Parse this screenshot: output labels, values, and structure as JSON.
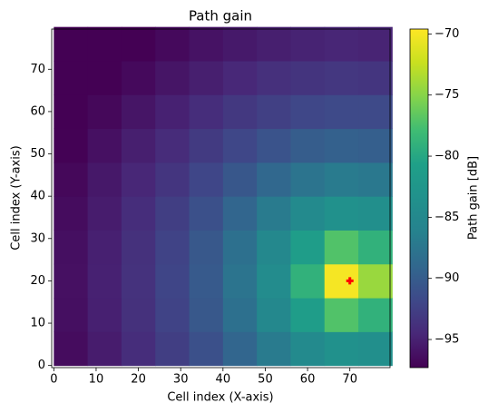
{
  "chart_data": {
    "type": "heatmap",
    "title": "Path gain",
    "xlabel": "Cell index (X-axis)",
    "ylabel": "Cell index (Y-axis)",
    "colorbar_label": "Path gain [dB]",
    "colormap": "viridis",
    "x": [
      4,
      12,
      20,
      28,
      36,
      44,
      52,
      60,
      68,
      76
    ],
    "y": [
      4,
      12,
      20,
      28,
      36,
      44,
      52,
      60,
      68,
      76
    ],
    "z": [
      [
        -96.5,
        -95.4,
        -94.1,
        -92.7,
        -91.1,
        -89.2,
        -87.0,
        -84.8,
        -83.4,
        -83.9
      ],
      [
        -96.3,
        -95.1,
        -93.8,
        -92.3,
        -90.4,
        -88.1,
        -85.2,
        -81.3,
        -77.2,
        -79.0
      ],
      [
        -96.2,
        -95.0,
        -93.7,
        -92.1,
        -90.2,
        -87.7,
        -84.4,
        -79.0,
        -70.0,
        -74.3
      ],
      [
        -96.3,
        -95.1,
        -93.8,
        -92.3,
        -90.4,
        -88.1,
        -85.2,
        -81.3,
        -77.2,
        -79.0
      ],
      [
        -96.5,
        -95.4,
        -94.1,
        -92.7,
        -91.1,
        -89.2,
        -87.0,
        -84.8,
        -83.4,
        -83.9
      ],
      [
        -96.8,
        -95.7,
        -94.6,
        -93.4,
        -92.0,
        -90.5,
        -89.0,
        -87.7,
        -87.0,
        -87.3
      ],
      [
        -97.2,
        -96.2,
        -95.2,
        -94.2,
        -93.0,
        -91.9,
        -90.9,
        -90.0,
        -89.6,
        -89.8
      ],
      [
        -97.6,
        -96.8,
        -95.9,
        -95.0,
        -94.1,
        -93.2,
        -92.5,
        -91.9,
        -91.7,
        -91.7
      ],
      [
        -98.1,
        -97.4,
        -96.7,
        -95.9,
        -95.2,
        -94.5,
        -93.9,
        -93.5,
        -93.3,
        -93.4
      ],
      [
        -98.7,
        -98.0,
        -97.4,
        -96.7,
        -96.1,
        -95.6,
        -95.2,
        -94.9,
        -94.7,
        -94.8
      ]
    ],
    "xlim": [
      -0.5,
      79.5
    ],
    "ylim": [
      -0.5,
      79.5
    ],
    "xticks": [
      0,
      10,
      20,
      30,
      40,
      50,
      60,
      70
    ],
    "yticks": [
      0,
      10,
      20,
      30,
      40,
      50,
      60,
      70
    ],
    "clim": [
      -97.3,
      -69.6
    ],
    "cticks": [
      {
        "value": -95,
        "label": "−95"
      },
      {
        "value": -90,
        "label": "−90"
      },
      {
        "value": -85,
        "label": "−85"
      },
      {
        "value": -80,
        "label": "−80"
      },
      {
        "value": -75,
        "label": "−75"
      },
      {
        "value": -70,
        "label": "−70"
      }
    ],
    "marker": {
      "x": 70,
      "y": 20,
      "color": "#ff0000"
    }
  }
}
